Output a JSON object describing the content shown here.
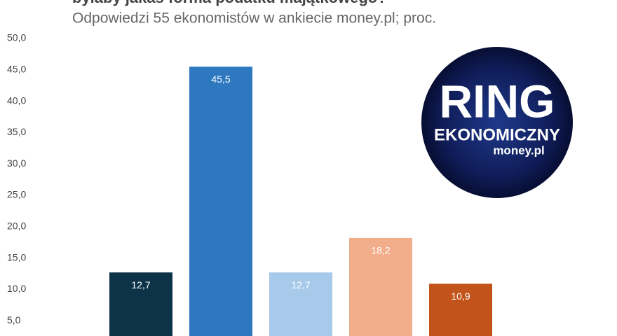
{
  "chart_data": {
    "type": "bar",
    "title": "byłaby jakaś forma podatku majątkowego?",
    "subtitle": "Odpowiedzi 55 ekonomistów w ankiecie money.pl; proc.",
    "values": [
      12.7,
      45.5,
      12.7,
      18.2,
      10.9
    ],
    "value_labels": [
      "12,7",
      "45,5",
      "12,7",
      "18,2",
      "10,9"
    ],
    "colors": [
      "#0d3349",
      "#2e78c0",
      "#a7c9ea",
      "#f2ad8a",
      "#c2531a"
    ],
    "ylim": [
      0,
      50
    ],
    "yticks": [
      {
        "value": 5,
        "label": "5,0"
      },
      {
        "value": 10,
        "label": "10,0"
      },
      {
        "value": 15,
        "label": "15,0"
      },
      {
        "value": 20,
        "label": "20,0"
      },
      {
        "value": 25,
        "label": "25,0"
      },
      {
        "value": 30,
        "label": "30,0"
      },
      {
        "value": 35,
        "label": "35,0"
      },
      {
        "value": 40,
        "label": "40,0"
      },
      {
        "value": 45,
        "label": "45,0"
      },
      {
        "value": 50,
        "label": "50,0"
      }
    ],
    "grid": false
  },
  "logo": {
    "line1": "RING",
    "line2": "EKONOMICZNY",
    "line3": "money.pl"
  }
}
